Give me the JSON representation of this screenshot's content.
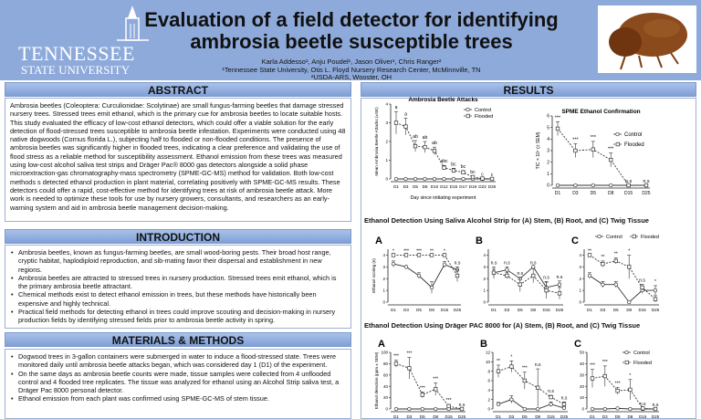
{
  "header": {
    "logo": {
      "line1": "TENNESSEE",
      "line2": "STATE UNIVERSITY"
    },
    "title": "Evaluation of a field detector for identifying ambrosia beetle susceptible trees",
    "authors": "Karla Addesso¹, Anju Poudel¹, Jason Oliver¹, Chris Ranger²",
    "affil1": "¹Tennessee State University, Otis L. Floyd Nursery Research Center, McMinnville, TN",
    "affil2": "²USDA-ARS, Wooster, OH"
  },
  "abstract": {
    "heading": "ABSTRACT",
    "text": "Ambrosia beetles (Coleoptera: Curculionidae: Scolytinae) are small fungus-farming beetles that damage stressed nursery trees. Stressed trees emit ethanol, which is the primary cue for ambrosia beetles to locate suitable hosts. This study evaluated the efficacy of low-cost ethanol detectors, which could offer a viable solution for the early detection of flood-stressed trees susceptible to ambrosia beetle infestation. Experiments were conducted using 48 native dogwoods (Cornus florida L.), subjecting half to flooded or non-flooded conditions. The presence of ambrosia beetles was significantly higher in flooded trees, indicating a clear preference and validating the use of flood stress as a reliable method for susceptibility assessment. Ethanol emission from these trees was measured using low-cost alcohol saliva test strips and Dräger Pac® 8000 gas detectors alongside a solid phase microextraction-gas chromatography-mass spectrometry (SPME-GC-MS) method for validation. Both low-cost methods s detected ethanol production in plant material, correlating positively with SPME-GC-MS results. These detectors could offer a rapid, cost-effective method for identifying trees at risk of ambrosia beetle attack. More work is needed to optimize these tools for use by nursery growers, consultants, and researchers as an early-warning system and aid in ambrosia beetle management decision-making."
  },
  "introduction": {
    "heading": "INTRODUCTION",
    "bullets": [
      "Ambrosia beetles, known as fungus-farming beetles, are small wood-boring pests. Their broad host range, cryptic habitat, haplodiploid reproduction, and sib-mating favor their dispersal and establishment in new regions.",
      "Ambrosia beetles are attracted to stressed trees in nursery production. Stressed trees emit ethanol, which is the primary ambrosia beetle attractant.",
      "Chemical methods exist to detect ethanol emission in trees, but these methods have historically been expensive and highly technical.",
      "Practical field methods for detecting ethanol in trees could improve scouting and decision-making in nursery production fields by identifying stressed fields prior to ambrosia beetle activity in spring."
    ]
  },
  "methods": {
    "heading": "MATERIALS & METHODS",
    "bullets": [
      "Dogwood trees in 3-gallon containers were submerged in water to induce a flood-stressed state. Trees were monitored daily until ambrosia beetle attacks began, which was considered day 1 (D1) of the experiment.",
      "On the same days as ambrosia beetle counts were made, tissue samples were collected from 4 unflooded control and 4 flooded tree replicates. The tissue was analyzed for ethanol using an Alcohol Strip saliva test, a Dräger Pac 8000 personal detector.",
      "Ethanol emission from each plant was confirmed using SPME-GC-MS of stem tissue."
    ]
  },
  "results": {
    "heading": "RESULTS",
    "saliva_title": "Ethanol Detection Using Saliva Alcohol Strip for (A) Stem, (B) Root, and (C) Twig Tissue",
    "drager_title": "Ethanol Detection Using Dräger PAC 8000 for (A) Stem, (B) Root, and (C) Twig Tissue"
  },
  "chart_data": [
    {
      "id": "attacks",
      "type": "line",
      "title": "Ambrosia Beetle Attacks",
      "xlabel": "Day since initiating experiment",
      "ylabel": "Mean Ambrosia Beetle Attacks (±SE)",
      "ylim": [
        0,
        4
      ],
      "yticks": [
        0,
        1,
        2,
        3,
        4
      ],
      "categories": [
        "D1",
        "D3",
        "D5",
        "D8",
        "D10",
        "D12",
        "D15",
        "D17",
        "D19",
        "D23",
        "D25"
      ],
      "series": [
        {
          "name": "Control",
          "values": [
            0,
            0,
            0,
            0,
            0,
            0,
            0,
            0,
            0,
            0,
            0
          ],
          "err": [
            0,
            0,
            0,
            0,
            0,
            0,
            0,
            0,
            0,
            0,
            0
          ]
        },
        {
          "name": "Flooded",
          "values": [
            3,
            2.8,
            1.75,
            1.7,
            1.5,
            0.6,
            0.45,
            0.35,
            0.1,
            0.02,
            0
          ],
          "err": [
            0.6,
            0.45,
            0.3,
            0.3,
            0.2,
            0.12,
            0.12,
            0.1,
            0.05,
            0,
            0
          ]
        }
      ],
      "annotations": [
        "a",
        "a",
        "ab",
        "ab",
        "ab",
        "abc",
        "bc",
        "bc",
        "bc",
        "c",
        "c"
      ],
      "legend": "top-right"
    },
    {
      "id": "spme",
      "type": "line",
      "title": "SPME Ethanol Confirmation",
      "xlabel": "",
      "ylabel": "TIC × 10⁷ (± SEM)",
      "ylim": [
        0,
        6
      ],
      "yticks": [
        0,
        1,
        2,
        3,
        4,
        5,
        6
      ],
      "categories": [
        "D1",
        "D3",
        "D5",
        "D8",
        "D15",
        "D25"
      ],
      "series": [
        {
          "name": "Control",
          "values": [
            0,
            0,
            0,
            0,
            0,
            0
          ],
          "err": [
            0,
            0,
            0,
            0,
            0,
            0
          ]
        },
        {
          "name": "Flooded",
          "values": [
            4.9,
            3,
            3.1,
            2.2,
            0,
            0
          ],
          "err": [
            0.6,
            0.6,
            0.7,
            0.6,
            0,
            0
          ]
        }
      ],
      "annotations": [
        "***",
        "***",
        "***",
        "***",
        "n.s",
        "n.s"
      ],
      "legend": "right"
    },
    {
      "id": "saliva-a",
      "panel": "A",
      "type": "line",
      "ylabel": "Ethanol scoring (n)",
      "ylim": [
        0,
        4.5
      ],
      "yticks": [
        0,
        1,
        2,
        3,
        4
      ],
      "categories": [
        "D1",
        "D3",
        "D5",
        "D8",
        "D15",
        "D25"
      ],
      "series": [
        {
          "name": "Control",
          "values": [
            3.25,
            3,
            2.25,
            1.25,
            3.2,
            2.75
          ],
          "err": [
            0.25,
            0,
            0.25,
            0.5,
            0.25,
            0.25
          ]
        },
        {
          "name": "Flooded",
          "values": [
            4,
            4,
            4,
            4,
            4,
            2.25
          ],
          "err": [
            0,
            0,
            0,
            0,
            0,
            0.5
          ]
        }
      ],
      "annotations": [
        "*",
        "***",
        "***",
        "**",
        "*",
        "n.s"
      ]
    },
    {
      "id": "saliva-b",
      "panel": "B",
      "type": "line",
      "ylim": [
        0,
        4.5
      ],
      "yticks": [
        0,
        1,
        2,
        3,
        4
      ],
      "categories": [
        "D1",
        "D3",
        "D5",
        "D8",
        "D15",
        "D25"
      ],
      "series": [
        {
          "name": "Control",
          "values": [
            2.5,
            2.75,
            2,
            3,
            1.25,
            1.5
          ],
          "err": [
            0.5,
            0.25,
            0,
            0,
            0.5,
            0.3
          ]
        },
        {
          "name": "Flooded",
          "values": [
            2.5,
            2.25,
            1.5,
            2.25,
            1,
            0.75
          ],
          "err": [
            0.3,
            0.25,
            0.6,
            0.6,
            0.7,
            0.5
          ]
        }
      ],
      "annotations": [
        "n.s",
        "n.s",
        "n.s",
        "n.s",
        "n.s",
        "n.s"
      ]
    },
    {
      "id": "saliva-c",
      "panel": "C",
      "type": "line",
      "ylim": [
        0,
        4.5
      ],
      "yticks": [
        0,
        1,
        2,
        3,
        4
      ],
      "categories": [
        "D1",
        "D3",
        "D5",
        "D8",
        "D15",
        "D25"
      ],
      "series": [
        {
          "name": "Control",
          "values": [
            2.25,
            1.5,
            1.5,
            0,
            1,
            1
          ],
          "err": [
            0.25,
            0.25,
            0.25,
            0,
            0.25,
            0.4
          ]
        },
        {
          "name": "Flooded",
          "values": [
            4,
            3.25,
            3.5,
            3,
            1.25,
            0.25
          ],
          "err": [
            0,
            0.25,
            0.25,
            1,
            0.25,
            0.3
          ]
        }
      ],
      "annotations": [
        "**",
        "**",
        "**",
        "*",
        "n.s",
        "*"
      ],
      "legend": "top"
    },
    {
      "id": "drager-a",
      "panel": "A",
      "type": "line",
      "ylabel": "Ethanol detection (ppm ± SEM)",
      "ylim": [
        0,
        100
      ],
      "yticks": [
        0,
        20,
        40,
        60,
        80,
        100
      ],
      "categories": [
        "D1",
        "D3",
        "D5",
        "D8",
        "D15",
        "D25"
      ],
      "series": [
        {
          "name": "Control",
          "values": [
            0,
            0,
            0,
            0,
            0,
            0
          ],
          "err": [
            0,
            0,
            0,
            0,
            0,
            0
          ]
        },
        {
          "name": "Flooded",
          "values": [
            80,
            72,
            25,
            35,
            5,
            0
          ],
          "err": [
            6,
            19,
            5,
            11,
            3,
            0
          ]
        }
      ],
      "annotations": [
        "***",
        "***",
        "***",
        "***",
        "***",
        "n.s"
      ]
    },
    {
      "id": "drager-b",
      "panel": "B",
      "type": "line",
      "ylim": [
        0,
        12
      ],
      "yticks": [
        0,
        2,
        4,
        6,
        8,
        10,
        12
      ],
      "categories": [
        "D1",
        "D3",
        "D5",
        "D8",
        "D15",
        "D25"
      ],
      "series": [
        {
          "name": "Control",
          "values": [
            1,
            2,
            0,
            0,
            1,
            0.2
          ],
          "err": [
            0.4,
            0.8,
            0,
            0,
            0.5,
            0.3
          ]
        },
        {
          "name": "Flooded",
          "values": [
            8,
            9,
            6,
            4.5,
            2.5,
            1
          ],
          "err": [
            1.3,
            1.2,
            1.8,
            4,
            0.4,
            0.5
          ]
        }
      ],
      "annotations": [
        "**",
        "*",
        "***",
        "n.s",
        "n.s",
        "n.s"
      ]
    },
    {
      "id": "drager-c",
      "panel": "C",
      "type": "line",
      "ylim": [
        0,
        50
      ],
      "yticks": [
        0,
        10,
        20,
        30,
        40,
        50
      ],
      "categories": [
        "D1",
        "D3",
        "D5",
        "D8",
        "D15",
        "D25"
      ],
      "series": [
        {
          "name": "Control",
          "values": [
            0,
            0,
            0.5,
            0,
            0,
            0
          ],
          "err": [
            0,
            0,
            0.3,
            0,
            0,
            0
          ]
        },
        {
          "name": "Flooded",
          "values": [
            27,
            29,
            16,
            17,
            0.5,
            0
          ],
          "err": [
            8,
            9,
            3,
            9,
            0.3,
            0
          ]
        }
      ],
      "annotations": [
        "***",
        "***",
        "***",
        "*",
        "n.s",
        "n.s"
      ],
      "legend": "right"
    }
  ]
}
